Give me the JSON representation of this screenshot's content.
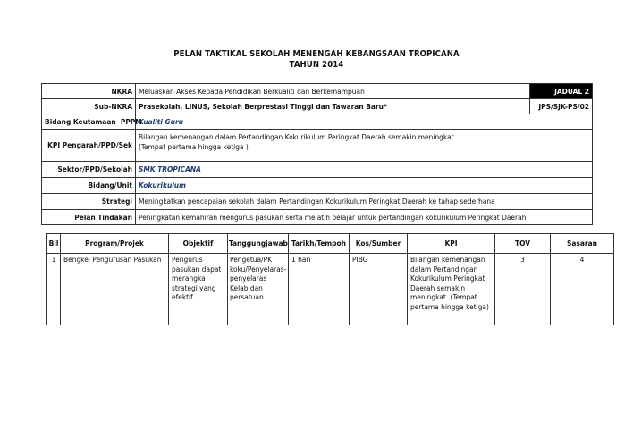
{
  "title": {
    "line1": "PELAN TAKTIKAL SEKOLAH MENENGAH KEBANGSAAN TROPICANA",
    "line2": "TAHUN 2014"
  },
  "info": {
    "nkra": {
      "label": "NKRA",
      "value": "Meluaskan Akses Kepada Pendidikan Berkualiti dan Berkemampuan",
      "tag": "JADUAL 2"
    },
    "subnkra": {
      "label": "Sub-NKRA",
      "value": "Prasekolah, LINUS, Sekolah Berprestasi Tinggi dan Tawaran Baru*",
      "code": "JPS/SJK-PS/02"
    },
    "bidang_keutamaan": {
      "label": "Bidang Keutamaan  PPPM",
      "value": "Kualiti Guru"
    },
    "kpi": {
      "label": "KPI Pengarah/PPD/Sek",
      "value_line1": "Bilangan kemenangan dalam Pertandingan Kokurikulum Peringkat Daerah semakin meningkat.",
      "value_line2": "(Tempat pertama hingga ketiga )"
    },
    "sektor": {
      "label": "Sektor/PPD/Sekolah",
      "value": "SMK TROPICANA"
    },
    "bidang_unit": {
      "label": "Bidang/Unit",
      "value": "Kokurikulum"
    },
    "strategi": {
      "label": "Strategi",
      "value": "Meningkatkan pencapaian sekolah dalam Pertandingan Kokurikulum Peringkat Daerah ke tahap sederhana"
    },
    "pelan": {
      "label": "Pelan Tindakan",
      "value": "Peningkatan kemahiran mengurus pasukan serta melatih pelajar untuk pertandingan kokurikulum Peringkat Daerah"
    }
  },
  "plan_table": {
    "headers": [
      "Bil",
      "Program/Projek",
      "Objektif",
      "Tanggungjawab",
      "Tarikh/Tempoh",
      "Kos/Sumber",
      "KPI",
      "TOV",
      "Sasaran"
    ],
    "rows": [
      [
        "1",
        "Bengkel Pengurusan Pasukan",
        "Pengurus pasukan dapat merangka strategi yang efektif",
        "Pengetua/PK koku/Penyelaras-penyelaras Kelab dan persatuan",
        "1 hari",
        "PIBG",
        "Bilangan kemenangan dalam Pertandingan Kokurikulum Peringkat Daerah semakin meningkat. (Tempat pertama hingga ketiga)",
        "3",
        "4"
      ]
    ]
  }
}
